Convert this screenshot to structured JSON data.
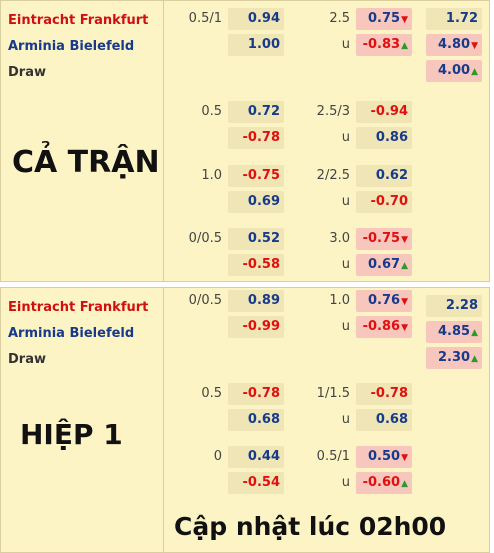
{
  "sections": [
    {
      "title": "CẢ TRẬN",
      "teams": [
        "Eintracht Frankfurt",
        "Arminia Bielefeld",
        "Draw"
      ],
      "odds_1x2": [
        {
          "value": "1.72"
        },
        {
          "value": "4.80",
          "trend": "down"
        },
        {
          "value": "4.00",
          "trend": "up"
        }
      ],
      "lines": [
        {
          "handicap": "0.5/1",
          "home": {
            "value": "0.94"
          },
          "away": {
            "value": "1.00"
          },
          "total": "2.5",
          "over": {
            "value": "0.75",
            "trend": "down"
          },
          "under_label": "u",
          "under": {
            "value": "-0.83",
            "trend": "up"
          }
        },
        {
          "handicap": "0.5",
          "home": {
            "value": "0.72"
          },
          "away": {
            "value": "-0.78"
          },
          "total": "2.5/3",
          "over": {
            "value": "-0.94"
          },
          "under_label": "u",
          "under": {
            "value": "0.86"
          }
        },
        {
          "handicap": "1.0",
          "home": {
            "value": "-0.75"
          },
          "away": {
            "value": "0.69"
          },
          "total": "2/2.5",
          "over": {
            "value": "0.62"
          },
          "under_label": "u",
          "under": {
            "value": "-0.70"
          }
        },
        {
          "handicap": "0/0.5",
          "home": {
            "value": "0.52"
          },
          "away": {
            "value": "-0.58"
          },
          "total": "3.0",
          "over": {
            "value": "-0.75",
            "trend": "down"
          },
          "under_label": "u",
          "under": {
            "value": "0.67",
            "trend": "up"
          }
        }
      ]
    },
    {
      "title": "HIỆP 1",
      "teams": [
        "Eintracht Frankfurt",
        "Arminia Bielefeld",
        "Draw"
      ],
      "odds_1x2": [
        {
          "value": "2.28"
        },
        {
          "value": "4.85",
          "trend": "up"
        },
        {
          "value": "2.30",
          "trend": "up"
        }
      ],
      "lines": [
        {
          "handicap": "0/0.5",
          "home": {
            "value": "0.89"
          },
          "away": {
            "value": "-0.99"
          },
          "total": "1.0",
          "over": {
            "value": "0.76",
            "trend": "down"
          },
          "under_label": "u",
          "under": {
            "value": "-0.86",
            "trend": "down"
          }
        },
        {
          "handicap": "0.5",
          "home": {
            "value": "-0.78"
          },
          "away": {
            "value": "0.68"
          },
          "total": "1/1.5",
          "over": {
            "value": "-0.78"
          },
          "under_label": "u",
          "under": {
            "value": "0.68"
          }
        },
        {
          "handicap": "0",
          "home": {
            "value": "0.44"
          },
          "away": {
            "value": "-0.54"
          },
          "total": "0.5/1",
          "over": {
            "value": "0.50",
            "trend": "down"
          },
          "under_label": "u",
          "under": {
            "value": "-0.60",
            "trend": "up"
          }
        }
      ]
    }
  ],
  "footer": "Cập nhật lúc 02h00"
}
